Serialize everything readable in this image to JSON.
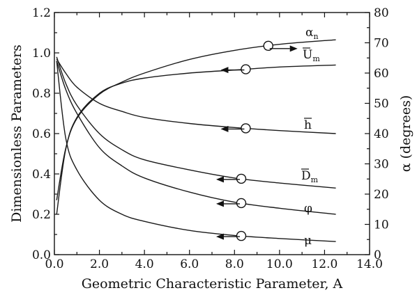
{
  "chart_data": {
    "type": "line",
    "xlabel": "Geometric Characteristic Parameter, A",
    "ylabel_left": "Dimensionless Parameters",
    "ylabel_right": "α (degrees)",
    "xlim": [
      0.0,
      14.0
    ],
    "ylim_left": [
      0.0,
      1.2
    ],
    "ylim_right": [
      0,
      80
    ],
    "x_ticks": [
      "0.0",
      "2.0",
      "4.0",
      "6.0",
      "8.0",
      "10.0",
      "12.0",
      "14.0"
    ],
    "y_left_ticks": [
      "0.0",
      "0.2",
      "0.4",
      "0.6",
      "0.8",
      "1.0",
      "1.2"
    ],
    "y_right_ticks": [
      "0",
      "10",
      "20",
      "30",
      "40",
      "50",
      "60",
      "70",
      "80"
    ],
    "grid": false,
    "series": [
      {
        "name": "α",
        "sub": "n",
        "axis": "right",
        "marker_x": 9.5,
        "arrow": "right",
        "x": [
          0.1,
          0.5,
          1.0,
          2.0,
          3.0,
          4.0,
          6.0,
          8.0,
          10.0,
          12.5
        ],
        "values": [
          18,
          35,
          45,
          53,
          57,
          60,
          64.5,
          67.5,
          69.5,
          71
        ]
      },
      {
        "name": "U",
        "sub": "m",
        "overbar": true,
        "axis": "left",
        "marker_x": 8.5,
        "arrow": "left",
        "x": [
          0.1,
          0.5,
          1.0,
          2.0,
          3.0,
          4.0,
          6.0,
          8.0,
          10.0,
          12.5
        ],
        "values": [
          0.2,
          0.52,
          0.68,
          0.8,
          0.85,
          0.875,
          0.9,
          0.915,
          0.93,
          0.94
        ]
      },
      {
        "name": "h",
        "overbar": true,
        "axis": "left",
        "marker_x": 8.5,
        "arrow": "left",
        "x": [
          0.1,
          0.5,
          1.0,
          2.0,
          3.0,
          4.0,
          6.0,
          8.0,
          10.0,
          12.5
        ],
        "values": [
          0.97,
          0.9,
          0.83,
          0.75,
          0.71,
          0.68,
          0.65,
          0.63,
          0.615,
          0.6
        ]
      },
      {
        "name": "D",
        "sub": "m",
        "overbar": true,
        "axis": "left",
        "marker_x": 8.3,
        "arrow": "left",
        "x": [
          0.1,
          0.5,
          1.0,
          2.0,
          3.0,
          4.0,
          6.0,
          8.0,
          10.0,
          12.5
        ],
        "values": [
          0.98,
          0.85,
          0.74,
          0.6,
          0.52,
          0.47,
          0.42,
          0.38,
          0.355,
          0.33
        ]
      },
      {
        "name": "φ",
        "axis": "left",
        "marker_x": 8.3,
        "arrow": "left",
        "x": [
          0.1,
          0.5,
          1.0,
          2.0,
          3.0,
          4.0,
          6.0,
          8.0,
          10.0,
          12.5
        ],
        "values": [
          0.96,
          0.82,
          0.7,
          0.53,
          0.44,
          0.38,
          0.31,
          0.26,
          0.23,
          0.2
        ]
      },
      {
        "name": "μ",
        "axis": "left",
        "marker_x": 8.3,
        "arrow": "left",
        "x": [
          0.1,
          0.5,
          1.0,
          2.0,
          3.0,
          4.0,
          6.0,
          8.0,
          10.0,
          12.5
        ],
        "values": [
          0.96,
          0.58,
          0.42,
          0.27,
          0.2,
          0.165,
          0.12,
          0.095,
          0.08,
          0.065
        ]
      }
    ]
  }
}
